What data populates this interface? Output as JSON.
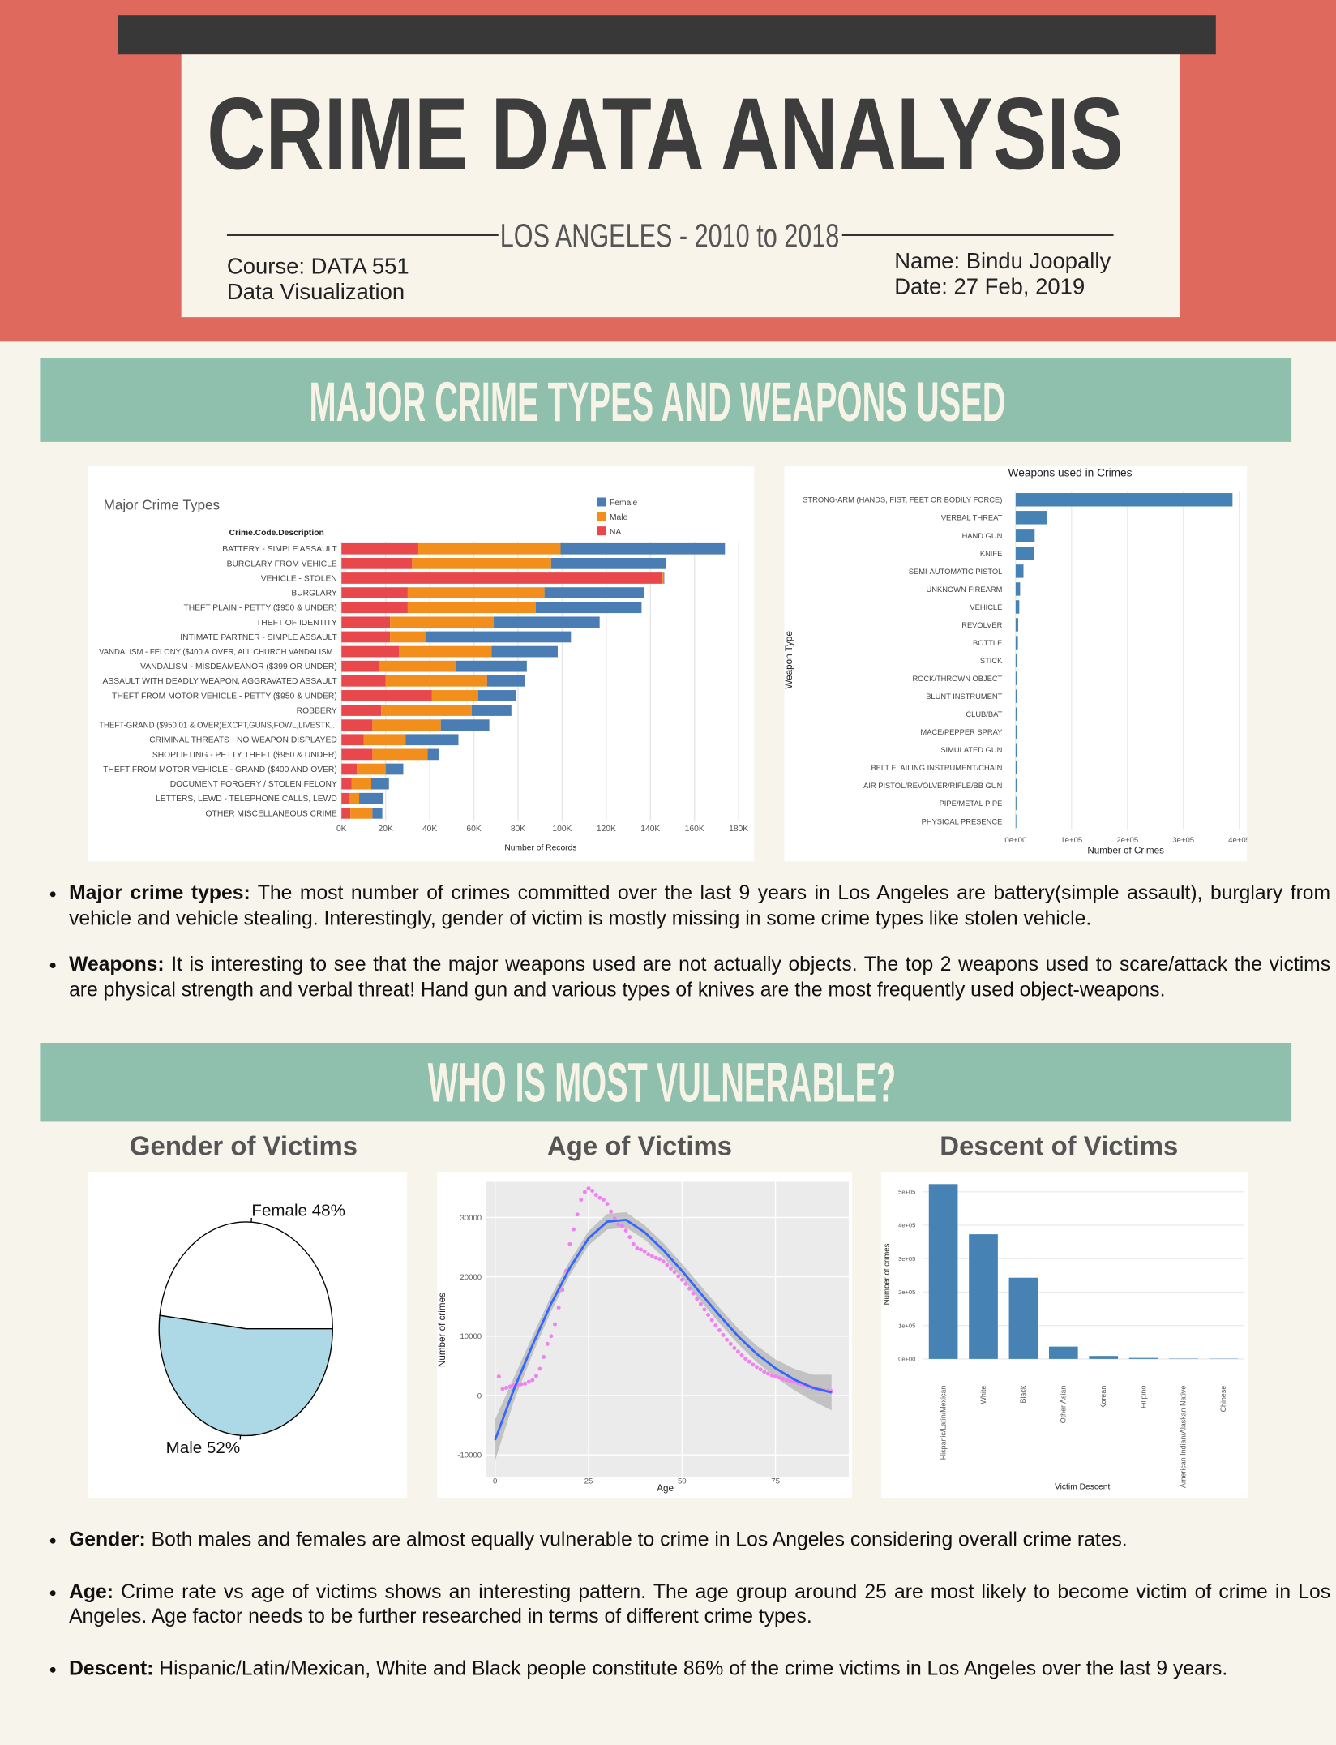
{
  "header": {
    "title": "CRIME DATA ANALYSIS",
    "subtitle": "LOS ANGELES - 2010 to 2018",
    "course": "Course: DATA 551",
    "course_name": "Data Visualization",
    "author": "Name: Bindu Joopally",
    "date": "Date: 27 Feb, 2019"
  },
  "sections": [
    {
      "title": "MAJOR CRIME TYPES AND WEAPONS USED",
      "notes": [
        {
          "label": "Major crime types:",
          "text": "The most number of crimes committed over the last 9 years in Los Angeles are battery(simple assault), burglary from vehicle and vehicle stealing. Interestingly, gender of victim is mostly missing in some crime types like stolen vehicle."
        },
        {
          "label": "Weapons:",
          "text": "It is interesting to see that the major weapons used are not actually objects. The top 2 weapons used to scare/attack the victims are physical strength and verbal threat! Hand gun and various types of knives are the most frequently used object-weapons."
        }
      ]
    },
    {
      "title": "WHO IS MOST VULNERABLE?",
      "panel_titles": [
        "Gender of Victims",
        "Age of Victims",
        "Descent of Victims"
      ],
      "notes": [
        {
          "label": "Gender:",
          "text": "Both males and females are almost equally vulnerable to crime in Los Angeles considering overall crime rates."
        },
        {
          "label": "Age:",
          "text": "Crime rate vs age of victims shows an interesting pattern. The age group around 25 are most likely to become victim of crime in Los Angeles. Age factor needs to be further researched in terms of different crime types."
        },
        {
          "label": "Descent:",
          "text": "Hispanic/Latin/Mexican, White and Black people constitute 86% of the crime victims in Los Angeles over the last 9 years."
        }
      ]
    }
  ],
  "chart_data": [
    {
      "type": "bar",
      "horizontal": true,
      "stacked": true,
      "title": "Major Crime Types",
      "y_label": "Crime.Code.Description",
      "x_label": "Number of Records",
      "categories": [
        "BATTERY - SIMPLE ASSAULT",
        "BURGLARY FROM VEHICLE",
        "VEHICLE - STOLEN",
        "BURGLARY",
        "THEFT PLAIN - PETTY ($950 & UNDER)",
        "THEFT OF IDENTITY",
        "INTIMATE PARTNER - SIMPLE ASSAULT",
        "VANDALISM - FELONY ($400 & OVER, ALL CHURCH VANDALISM..",
        "VANDALISM - MISDEAMEANOR ($399 OR UNDER)",
        "ASSAULT WITH DEADLY WEAPON, AGGRAVATED ASSAULT",
        "THEFT FROM MOTOR VEHICLE - PETTY ($950 & UNDER)",
        "ROBBERY",
        "THEFT-GRAND ($950.01 & OVER)EXCPT,GUNS,FOWL,LIVESTK,..",
        "CRIMINAL THREATS - NO WEAPON DISPLAYED",
        "SHOPLIFTING - PETTY THEFT ($950 & UNDER)",
        "THEFT FROM MOTOR VEHICLE - GRAND ($400 AND OVER)",
        "DOCUMENT FORGERY / STOLEN FELONY",
        "LETTERS, LEWD - TELEPHONE CALLS, LEWD",
        "OTHER MISCELLANEOUS CRIME"
      ],
      "series": [
        {
          "name": "NA",
          "color": "#e8474b",
          "values": [
            34800,
            32000,
            145500,
            30000,
            30000,
            22000,
            22000,
            26000,
            17000,
            20000,
            41000,
            18000,
            14000,
            10000,
            14000,
            7000,
            4500,
            3500,
            4000
          ]
        },
        {
          "name": "Male",
          "color": "#f28e1c",
          "values": [
            64500,
            63000,
            500,
            62000,
            58000,
            47000,
            16000,
            42000,
            35000,
            46000,
            21000,
            41000,
            31000,
            19000,
            25000,
            13000,
            9000,
            4500,
            10000
          ]
        },
        {
          "name": "Female",
          "color": "#4a7db3",
          "values": [
            74500,
            52000,
            300,
            45000,
            48000,
            48000,
            66000,
            30000,
            32000,
            17000,
            17000,
            18000,
            22000,
            24000,
            5000,
            8000,
            8000,
            11000,
            4500
          ]
        }
      ],
      "xlim": [
        0,
        180000
      ],
      "xticks": [
        {
          "value": 0,
          "label": "0K"
        },
        {
          "value": 20000,
          "label": "20K"
        },
        {
          "value": 40000,
          "label": "40K"
        },
        {
          "value": 60000,
          "label": "60K"
        },
        {
          "value": 80000,
          "label": "80K"
        },
        {
          "value": 100000,
          "label": "100K"
        },
        {
          "value": 120000,
          "label": "120K"
        },
        {
          "value": 140000,
          "label": "140K"
        },
        {
          "value": 160000,
          "label": "160K"
        },
        {
          "value": 180000,
          "label": "180K"
        }
      ],
      "grid": true,
      "legend": "top-right"
    },
    {
      "type": "bar",
      "horizontal": true,
      "title": "Weapons used in Crimes",
      "x_label": "Number of Crimes",
      "y_label": "Weapon Type",
      "categories": [
        "STRONG-ARM (HANDS, FIST, FEET OR BODILY FORCE)",
        "VERBAL THREAT",
        "HAND GUN",
        "KNIFE",
        "SEMI-AUTOMATIC PISTOL",
        "UNKNOWN FIREARM",
        "VEHICLE",
        "REVOLVER",
        "BOTTLE",
        "STICK",
        "ROCK/THROWN OBJECT",
        "BLUNT INSTRUMENT",
        "CLUB/BAT",
        "MACE/PEPPER SPRAY",
        "SIMULATED GUN",
        "BELT FLAILING INSTRUMENT/CHAIN",
        "AIR PISTOL/REVOLVER/RIFLE/BB GUN",
        "PIPE/METAL PIPE",
        "PHYSICAL PRESENCE"
      ],
      "values": [
        388000,
        56000,
        34000,
        33000,
        14000,
        8000,
        6500,
        4500,
        4000,
        3000,
        3000,
        2800,
        2700,
        2500,
        2200,
        2000,
        1800,
        1500,
        1200
      ],
      "color": "#4682b4",
      "xlim": [
        -14000,
        400000
      ],
      "xticks": [
        {
          "value": 0,
          "label": "0e+00"
        },
        {
          "value": 100000,
          "label": "1e+05"
        },
        {
          "value": 200000,
          "label": "2e+05"
        },
        {
          "value": 300000,
          "label": "3e+05"
        },
        {
          "value": 400000,
          "label": "4e+05"
        }
      ],
      "grid": true
    },
    {
      "type": "pie",
      "values": [
        48,
        52
      ],
      "value_labels": [
        "Female 48%",
        "Male 52%"
      ],
      "colors": [
        "#ffffff",
        "#add8e6"
      ]
    },
    {
      "type": "scatter",
      "x_label": "Age",
      "y_label": "Number of crimes",
      "x": [
        1,
        2,
        3,
        4,
        5,
        6,
        7,
        8,
        9,
        10,
        11,
        12,
        13,
        14,
        15,
        16,
        17,
        18,
        19,
        20,
        21,
        22,
        23,
        24,
        25,
        26,
        27,
        28,
        29,
        30,
        31,
        32,
        33,
        34,
        35,
        36,
        37,
        38,
        39,
        40,
        41,
        42,
        43,
        44,
        45,
        46,
        47,
        48,
        49,
        50,
        51,
        52,
        53,
        54,
        55,
        56,
        57,
        58,
        59,
        60,
        61,
        62,
        63,
        64,
        65,
        66,
        67,
        68,
        69,
        70,
        71,
        72,
        73,
        74,
        75,
        76,
        77,
        78,
        79,
        80,
        81,
        82,
        83,
        84,
        85,
        86,
        87,
        88,
        89,
        90
      ],
      "values": [
        3200,
        1100,
        1300,
        1500,
        1700,
        1800,
        1900,
        2000,
        2300,
        2600,
        3300,
        4500,
        6500,
        8700,
        10000,
        12000,
        14800,
        17800,
        21000,
        25500,
        28000,
        30500,
        33000,
        34300,
        34900,
        34500,
        33800,
        33300,
        33000,
        32300,
        31000,
        29800,
        28800,
        28600,
        27800,
        26700,
        25500,
        24800,
        24600,
        24300,
        23800,
        23500,
        23200,
        23000,
        22600,
        22000,
        21400,
        20800,
        20100,
        19500,
        18800,
        18000,
        17200,
        16300,
        15400,
        14500,
        13600,
        12700,
        11800,
        11000,
        10200,
        9400,
        8700,
        8000,
        7400,
        6800,
        6200,
        5700,
        5200,
        4800,
        4400,
        4000,
        3700,
        3400,
        3200,
        3000,
        2800,
        2600,
        2400,
        2300,
        2100,
        1900,
        1700,
        1500,
        1300,
        1100,
        1000,
        900,
        800,
        700
      ],
      "color": "#ee82ee",
      "smooth": {
        "x": [
          0,
          5,
          10,
          15,
          20,
          25,
          30,
          35,
          40,
          45,
          50,
          55,
          60,
          65,
          70,
          75,
          80,
          85,
          90
        ],
        "values": [
          -7500,
          1000,
          8500,
          15500,
          21500,
          26500,
          29300,
          29600,
          27500,
          24500,
          21000,
          17200,
          13500,
          10000,
          7000,
          4600,
          2700,
          1300,
          500
        ],
        "lower": [
          -11000,
          -1000,
          7000,
          14200,
          20300,
          25300,
          28000,
          28300,
          26300,
          23300,
          19800,
          15900,
          12200,
          8700,
          5600,
          3100,
          900,
          -900,
          -2500
        ],
        "upper": [
          -4000,
          3000,
          10000,
          16800,
          22700,
          27700,
          30600,
          30900,
          28700,
          25700,
          22200,
          18500,
          14800,
          11300,
          8400,
          6100,
          4500,
          3500,
          3500
        ],
        "color": "#3366ff",
        "band_color": "#9a9a9a"
      },
      "xlim": [
        -2.4,
        94.6
      ],
      "ylim": [
        -13700,
        36000
      ],
      "xticks": [
        0,
        25,
        50,
        75
      ],
      "yticks": [
        -10000,
        0,
        10000,
        20000,
        30000
      ],
      "grid": true,
      "background": "#ebebeb"
    },
    {
      "type": "bar",
      "horizontal": false,
      "x_label": "Victim Descent",
      "y_label": "Number of crimes",
      "categories": [
        "Hispanic/Latin/Mexican",
        "White",
        "Black",
        "Other Asian",
        "Korean",
        "Filipino",
        "American Indian/Alaskan Native",
        "Chinese"
      ],
      "values": [
        523000,
        373000,
        243000,
        37000,
        9000,
        3000,
        1000,
        800
      ],
      "color": "#4682b4",
      "ylim": [
        -23000,
        543000
      ],
      "yticks": [
        {
          "value": 0,
          "label": "0e+00"
        },
        {
          "value": 100000,
          "label": "1e+05"
        },
        {
          "value": 200000,
          "label": "2e+05"
        },
        {
          "value": 300000,
          "label": "3e+05"
        },
        {
          "value": 400000,
          "label": "4e+05"
        },
        {
          "value": 500000,
          "label": "5e+05"
        }
      ],
      "grid": true
    }
  ]
}
